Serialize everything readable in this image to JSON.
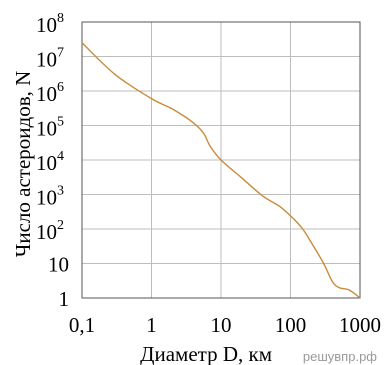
{
  "chart_data": {
    "type": "line",
    "xlabel": "Диаметр D, км",
    "ylabel": "Число астероидов, N",
    "x_scale": "log",
    "y_scale": "log",
    "xlim": [
      0.1,
      1000
    ],
    "ylim": [
      1,
      100000000
    ],
    "grid": true,
    "x_ticks": [
      {
        "value": 0.1,
        "label": "0,1"
      },
      {
        "value": 1,
        "label": "1"
      },
      {
        "value": 10,
        "label": "10"
      },
      {
        "value": 100,
        "label": "100"
      },
      {
        "value": 1000,
        "label": "1000"
      }
    ],
    "y_ticks": [
      {
        "value": 1,
        "base": "1",
        "exp": ""
      },
      {
        "value": 10,
        "base": "10",
        "exp": ""
      },
      {
        "value": 100,
        "base": "10",
        "exp": "2"
      },
      {
        "value": 1000,
        "base": "10",
        "exp": "3"
      },
      {
        "value": 10000,
        "base": "10",
        "exp": "4"
      },
      {
        "value": 100000,
        "base": "10",
        "exp": "5"
      },
      {
        "value": 1000000,
        "base": "10",
        "exp": "6"
      },
      {
        "value": 10000000,
        "base": "10",
        "exp": "7"
      },
      {
        "value": 100000000,
        "base": "10",
        "exp": "8"
      }
    ],
    "series": [
      {
        "color": "#c98a3a",
        "points": [
          [
            0.1,
            25000000
          ],
          [
            0.3,
            3000000
          ],
          [
            1,
            600000
          ],
          [
            2,
            300000
          ],
          [
            4,
            120000
          ],
          [
            5.6,
            60000
          ],
          [
            7,
            25000
          ],
          [
            10,
            10000
          ],
          [
            20,
            3000
          ],
          [
            40,
            900
          ],
          [
            70,
            450
          ],
          [
            110,
            200
          ],
          [
            150,
            100
          ],
          [
            200,
            40
          ],
          [
            300,
            10
          ],
          [
            400,
            3
          ],
          [
            500,
            2
          ],
          [
            700,
            1.7
          ],
          [
            1000,
            1
          ]
        ]
      }
    ]
  },
  "watermark": "решувпр.рф"
}
